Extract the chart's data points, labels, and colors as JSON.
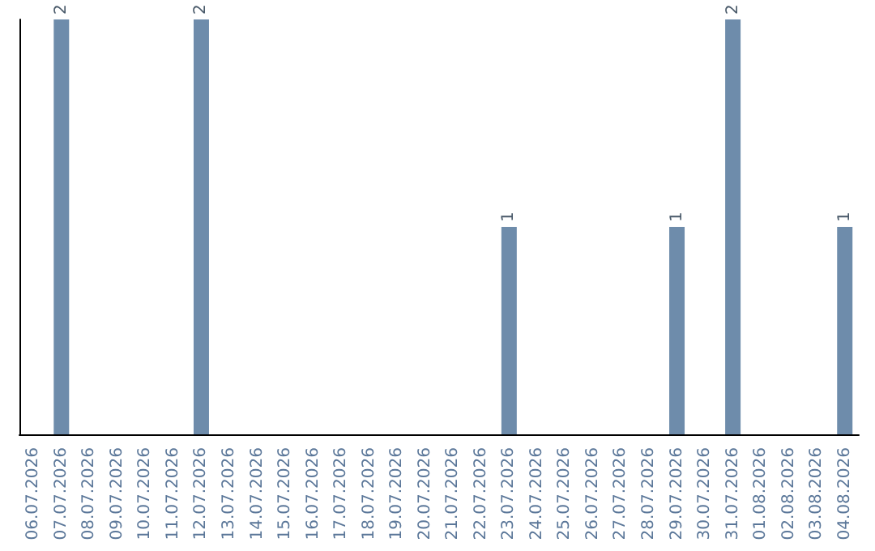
{
  "chart_data": {
    "type": "bar",
    "categories": [
      "06.07.2026",
      "07.07.2026",
      "08.07.2026",
      "09.07.2026",
      "10.07.2026",
      "11.07.2026",
      "12.07.2026",
      "13.07.2026",
      "14.07.2026",
      "15.07.2026",
      "16.07.2026",
      "17.07.2026",
      "18.07.2026",
      "19.07.2026",
      "20.07.2026",
      "21.07.2026",
      "22.07.2026",
      "23.07.2026",
      "24.07.2026",
      "25.07.2026",
      "26.07.2026",
      "27.07.2026",
      "28.07.2026",
      "29.07.2026",
      "30.07.2026",
      "31.07.2026",
      "01.08.2026",
      "02.08.2026",
      "03.08.2026",
      "04.08.2026"
    ],
    "values": [
      0,
      2,
      0,
      0,
      0,
      0,
      2,
      0,
      0,
      0,
      0,
      0,
      0,
      0,
      0,
      0,
      0,
      1,
      0,
      0,
      0,
      0,
      0,
      1,
      0,
      2,
      0,
      0,
      0,
      1
    ],
    "value_labels": [
      null,
      "2",
      null,
      null,
      null,
      null,
      "2",
      null,
      null,
      null,
      null,
      null,
      null,
      null,
      null,
      null,
      null,
      "1",
      null,
      null,
      null,
      null,
      null,
      "1",
      null,
      "2",
      null,
      null,
      null,
      "1"
    ],
    "color": "#6e8cab",
    "ylim": [
      0,
      2
    ],
    "tick_labels": "x"
  }
}
